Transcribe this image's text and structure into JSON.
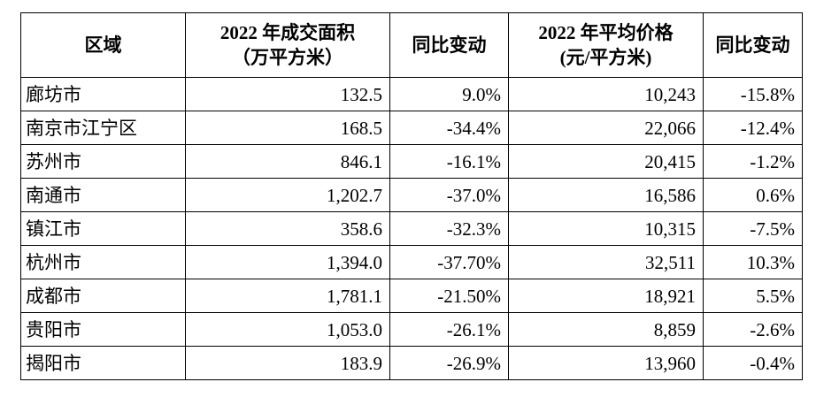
{
  "table": {
    "headers": [
      {
        "line1": "区域",
        "line2": ""
      },
      {
        "line1": "2022 年成交面积",
        "line2": "（万平方米）"
      },
      {
        "line1": "同比变动",
        "line2": ""
      },
      {
        "line1": "2022 年平均价格",
        "line2": "(元/平方米)"
      },
      {
        "line1": "同比变动",
        "line2": ""
      }
    ],
    "rows": [
      [
        "廊坊市",
        "132.5",
        "9.0%",
        "10,243",
        "-15.8%"
      ],
      [
        "南京市江宁区",
        "168.5",
        "-34.4%",
        "22,066",
        "-12.4%"
      ],
      [
        "苏州市",
        "846.1",
        "-16.1%",
        "20,415",
        "-1.2%"
      ],
      [
        "南通市",
        "1,202.7",
        "-37.0%",
        "16,586",
        "0.6%"
      ],
      [
        "镇江市",
        "358.6",
        "-32.3%",
        "10,315",
        "-7.5%"
      ],
      [
        "杭州市",
        "1,394.0",
        "-37.70%",
        "32,511",
        "10.3%"
      ],
      [
        "成都市",
        "1,781.1",
        "-21.50%",
        "18,921",
        "5.5%"
      ],
      [
        "贵阳市",
        "1,053.0",
        "-26.1%",
        "8,859",
        "-2.6%"
      ],
      [
        "揭阳市",
        "183.9",
        "-26.9%",
        "13,960",
        "-0.4%"
      ]
    ]
  }
}
